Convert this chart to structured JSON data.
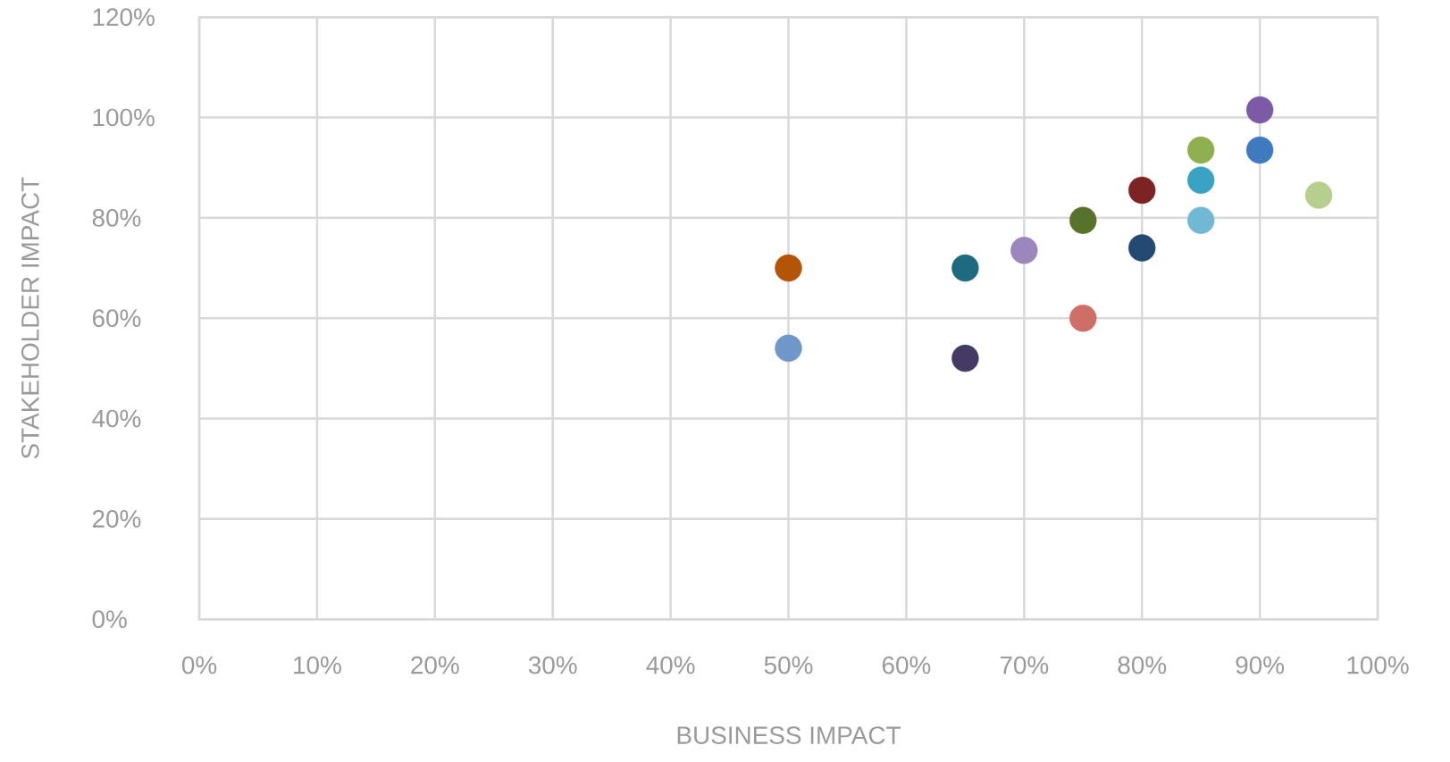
{
  "chart_data": {
    "type": "scatter",
    "xlabel": "BUSINESS IMPACT",
    "ylabel": "STAKEHOLDER IMPACT",
    "x": [
      50,
      50,
      65,
      65,
      70,
      75,
      75,
      80,
      80,
      85,
      85,
      85,
      90,
      90,
      95
    ],
    "values": [
      70,
      54,
      70,
      52,
      73.5,
      60,
      79.5,
      85.5,
      74,
      93.5,
      87.5,
      79.5,
      101.5,
      93.5,
      84.5
    ],
    "colors": [
      "#b35407",
      "#6f97c9",
      "#1e6b80",
      "#453a63",
      "#9b86bd",
      "#cf6e66",
      "#56722b",
      "#7d2323",
      "#244a73",
      "#8fb04f",
      "#3aa3c4",
      "#71b8d4",
      "#7b5ba6",
      "#3f79bf",
      "#b7cf8e"
    ],
    "xlim": [
      0,
      100
    ],
    "ylim": [
      0,
      120
    ],
    "xticks": [
      {
        "value": 0,
        "label": "0%"
      },
      {
        "value": 10,
        "label": "10%"
      },
      {
        "value": 20,
        "label": "20%"
      },
      {
        "value": 30,
        "label": "30%"
      },
      {
        "value": 40,
        "label": "40%"
      },
      {
        "value": 50,
        "label": "50%"
      },
      {
        "value": 60,
        "label": "60%"
      },
      {
        "value": 70,
        "label": "70%"
      },
      {
        "value": 80,
        "label": "80%"
      },
      {
        "value": 90,
        "label": "90%"
      },
      {
        "value": 100,
        "label": "100%"
      }
    ],
    "yticks": [
      {
        "value": 0,
        "label": "0%"
      },
      {
        "value": 20,
        "label": "20%"
      },
      {
        "value": 40,
        "label": "40%"
      },
      {
        "value": 60,
        "label": "60%"
      },
      {
        "value": 80,
        "label": "80%"
      },
      {
        "value": 100,
        "label": "100%"
      },
      {
        "value": 120,
        "label": "120%"
      }
    ],
    "grid": true,
    "marker": "circle"
  }
}
